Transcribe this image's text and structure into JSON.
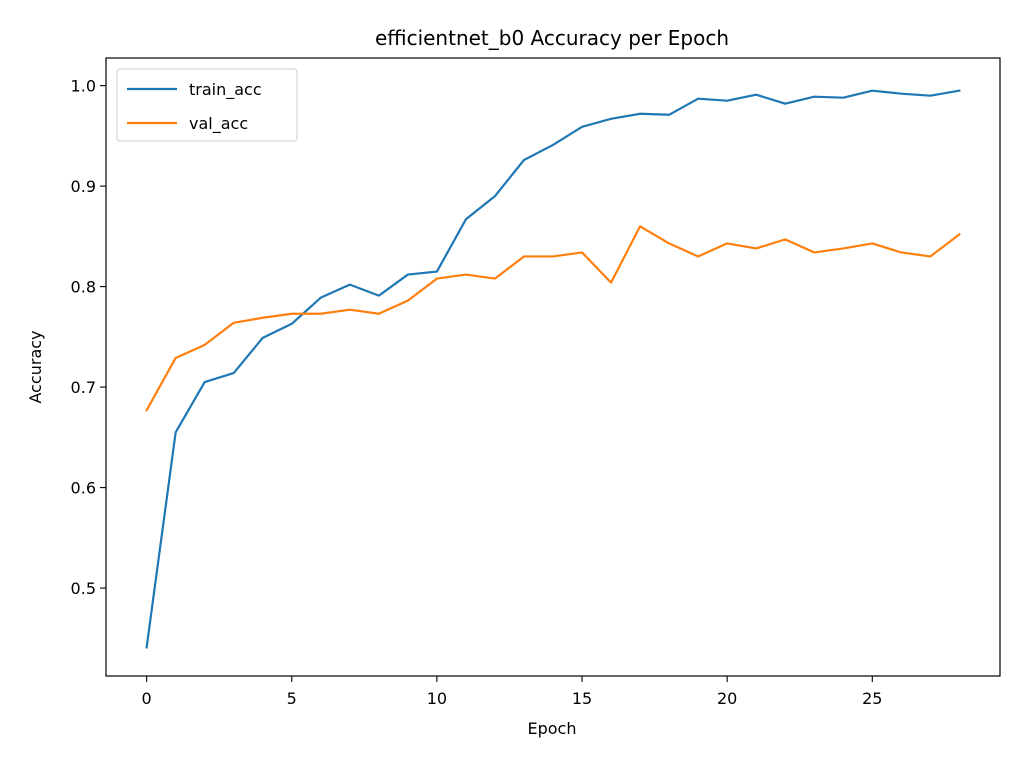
{
  "chart_data": {
    "type": "line",
    "title": "efficientnet_b0 Accuracy per Epoch",
    "xlabel": "Epoch",
    "ylabel": "Accuracy",
    "xlim": [
      -1.4,
      29.4
    ],
    "ylim": [
      0.4125,
      1.0275
    ],
    "x_ticks": [
      0,
      5,
      10,
      15,
      20,
      25
    ],
    "x_tick_labels": [
      "0",
      "5",
      "10",
      "15",
      "20",
      "25"
    ],
    "y_ticks": [
      0.5,
      0.6,
      0.7,
      0.8,
      0.9,
      1.0
    ],
    "y_tick_labels": [
      "0.5",
      "0.6",
      "0.7",
      "0.8",
      "0.9",
      "1.0"
    ],
    "grid": false,
    "legend_position": "top-left",
    "x": [
      0,
      1,
      2,
      3,
      4,
      5,
      6,
      7,
      8,
      9,
      10,
      11,
      12,
      13,
      14,
      15,
      16,
      17,
      18,
      19,
      20,
      21,
      22,
      23,
      24,
      25,
      26,
      27,
      28
    ],
    "series": [
      {
        "name": "train_acc",
        "color": "#1f77b4",
        "values": [
          0.441,
          0.655,
          0.705,
          0.714,
          0.749,
          0.763,
          0.789,
          0.802,
          0.791,
          0.812,
          0.815,
          0.867,
          0.89,
          0.926,
          0.941,
          0.959,
          0.967,
          0.972,
          0.971,
          0.987,
          0.985,
          0.991,
          0.982,
          0.989,
          0.988,
          0.995,
          0.992,
          0.99,
          0.995
        ]
      },
      {
        "name": "val_acc",
        "color": "#ff7f0e",
        "values": [
          0.677,
          0.729,
          0.742,
          0.764,
          0.769,
          0.773,
          0.773,
          0.777,
          0.773,
          0.786,
          0.808,
          0.812,
          0.808,
          0.83,
          0.83,
          0.834,
          0.804,
          0.86,
          0.843,
          0.83,
          0.843,
          0.838,
          0.847,
          0.834,
          0.838,
          0.843,
          0.834,
          0.83,
          0.852
        ]
      }
    ]
  }
}
